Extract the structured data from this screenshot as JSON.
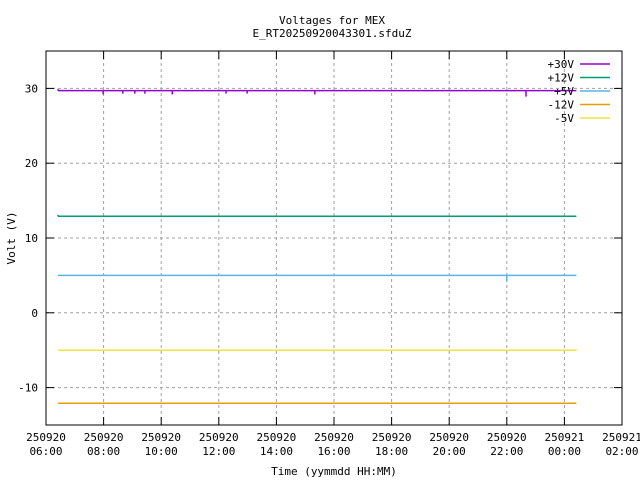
{
  "chart_data": {
    "type": "line",
    "title": "Voltages for MEX",
    "subtitle": "E_RT20250920043301.sfduZ",
    "xlabel": "Time (yymmdd HH:MM)",
    "ylabel": "Volt (V)",
    "xlim": [
      "2025-09-20 06:00",
      "2025-09-21 02:00"
    ],
    "ylim": [
      -15,
      35
    ],
    "yticks": [
      -10,
      0,
      10,
      20,
      30
    ],
    "xticks": [
      {
        "t": "2025-09-20 06:00",
        "date": "250920",
        "time": "06:00"
      },
      {
        "t": "2025-09-20 08:00",
        "date": "250920",
        "time": "08:00"
      },
      {
        "t": "2025-09-20 10:00",
        "date": "250920",
        "time": "10:00"
      },
      {
        "t": "2025-09-20 12:00",
        "date": "250920",
        "time": "12:00"
      },
      {
        "t": "2025-09-20 14:00",
        "date": "250920",
        "time": "14:00"
      },
      {
        "t": "2025-09-20 16:00",
        "date": "250920",
        "time": "16:00"
      },
      {
        "t": "2025-09-20 18:00",
        "date": "250920",
        "time": "18:00"
      },
      {
        "t": "2025-09-20 20:00",
        "date": "250920",
        "time": "20:00"
      },
      {
        "t": "2025-09-20 22:00",
        "date": "250920",
        "time": "22:00"
      },
      {
        "t": "2025-09-21 00:00",
        "date": "250921",
        "time": "00:00"
      },
      {
        "t": "2025-09-21 02:00",
        "date": "250921",
        "time": "02:00"
      }
    ],
    "grid": true,
    "legend_position": "top-right",
    "x_start": "2025-09-20 06:25",
    "x_end": "2025-09-21 00:25",
    "series": [
      {
        "name": "+30V",
        "color": "#9400d3",
        "level": 29.7,
        "points": [
          [
            "2025-09-20 06:25",
            29.9
          ],
          [
            "2025-09-20 06:50",
            29.8
          ],
          [
            "2025-09-20 07:59",
            29.2
          ],
          [
            "2025-09-20 08:40",
            29.3
          ],
          [
            "2025-09-20 09:05",
            29.3
          ],
          [
            "2025-09-20 09:26",
            29.3
          ],
          [
            "2025-09-20 10:23",
            29.2
          ],
          [
            "2025-09-20 12:15",
            29.3
          ],
          [
            "2025-09-20 12:59",
            29.3
          ],
          [
            "2025-09-20 15:20",
            29.2
          ],
          [
            "2025-09-20 22:40",
            28.9
          ]
        ]
      },
      {
        "name": "+12V",
        "color": "#009e73",
        "level": 12.9,
        "points": [
          [
            "2025-09-20 06:25",
            13.1
          ],
          [
            "2025-09-20 06:40",
            13.0
          ]
        ]
      },
      {
        "name": "+5V",
        "color": "#56b4e9",
        "level": 5.0,
        "points": [
          [
            "2025-09-20 22:00",
            4.2
          ]
        ]
      },
      {
        "name": "-12V",
        "color": "#e69f00",
        "level": -12.1,
        "points": []
      },
      {
        "name": "-5V",
        "color": "#f0e442",
        "level": -5.0,
        "points": [
          [
            "2025-09-20 12:00",
            -4.9
          ],
          [
            "2025-09-21 00:25",
            -4.9
          ]
        ]
      }
    ]
  }
}
